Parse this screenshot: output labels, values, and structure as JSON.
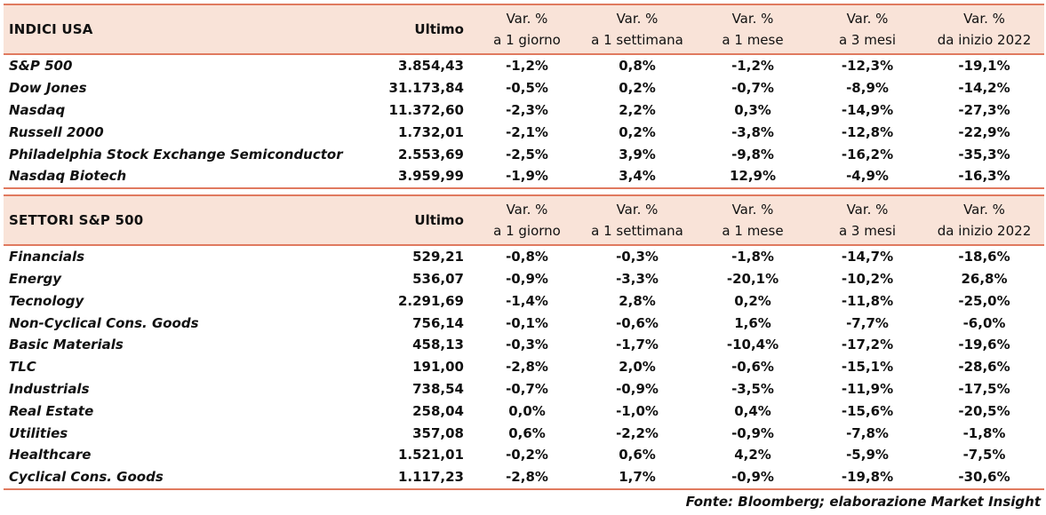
{
  "sections": [
    {
      "title": "INDICI USA",
      "last_label": "Ultimo",
      "columns": [
        {
          "line1": "Var. %",
          "line2": "a 1 giorno"
        },
        {
          "line1": "Var. %",
          "line2": "a 1 settimana"
        },
        {
          "line1": "Var. %",
          "line2": "a 1 mese"
        },
        {
          "line1": "Var. %",
          "line2": "a 3 mesi"
        },
        {
          "line1": "Var. %",
          "line2": "da inizio 2022"
        }
      ],
      "rows": [
        {
          "name": "S&P 500",
          "last": "3.854,43",
          "d1": "-1,2%",
          "w1": "0,8%",
          "m1": "-1,2%",
          "m3": "-12,3%",
          "ytd": "-19,1%"
        },
        {
          "name": "Dow Jones",
          "last": "31.173,84",
          "d1": "-0,5%",
          "w1": "0,2%",
          "m1": "-0,7%",
          "m3": "-8,9%",
          "ytd": "-14,2%"
        },
        {
          "name": "Nasdaq",
          "last": "11.372,60",
          "d1": "-2,3%",
          "w1": "2,2%",
          "m1": "0,3%",
          "m3": "-14,9%",
          "ytd": "-27,3%"
        },
        {
          "name": "Russell 2000",
          "last": "1.732,01",
          "d1": "-2,1%",
          "w1": "0,2%",
          "m1": "-3,8%",
          "m3": "-12,8%",
          "ytd": "-22,9%"
        },
        {
          "name": "Philadelphia Stock Exchange Semiconductor",
          "last": "2.553,69",
          "d1": "-2,5%",
          "w1": "3,9%",
          "m1": "-9,8%",
          "m3": "-16,2%",
          "ytd": "-35,3%"
        },
        {
          "name": "Nasdaq Biotech",
          "last": "3.959,99",
          "d1": "-1,9%",
          "w1": "3,4%",
          "m1": "12,9%",
          "m3": "-4,9%",
          "ytd": "-16,3%"
        }
      ]
    },
    {
      "title": "SETTORI S&P 500",
      "last_label": "Ultimo",
      "columns": [
        {
          "line1": "Var. %",
          "line2": "a 1 giorno"
        },
        {
          "line1": "Var. %",
          "line2": "a 1 settimana"
        },
        {
          "line1": "Var. %",
          "line2": "a 1 mese"
        },
        {
          "line1": "Var. %",
          "line2": "a 3 mesi"
        },
        {
          "line1": "Var. %",
          "line2": "da inizio 2022"
        }
      ],
      "rows": [
        {
          "name": "Financials",
          "last": "529,21",
          "d1": "-0,8%",
          "w1": "-0,3%",
          "m1": "-1,8%",
          "m3": "-14,7%",
          "ytd": "-18,6%"
        },
        {
          "name": "Energy",
          "last": "536,07",
          "d1": "-0,9%",
          "w1": "-3,3%",
          "m1": "-20,1%",
          "m3": "-10,2%",
          "ytd": "26,8%"
        },
        {
          "name": "Tecnology",
          "last": "2.291,69",
          "d1": "-1,4%",
          "w1": "2,8%",
          "m1": "0,2%",
          "m3": "-11,8%",
          "ytd": "-25,0%"
        },
        {
          "name": "Non-Cyclical Cons. Goods",
          "last": "756,14",
          "d1": "-0,1%",
          "w1": "-0,6%",
          "m1": "1,6%",
          "m3": "-7,7%",
          "ytd": "-6,0%"
        },
        {
          "name": "Basic Materials",
          "last": "458,13",
          "d1": "-0,3%",
          "w1": "-1,7%",
          "m1": "-10,4%",
          "m3": "-17,2%",
          "ytd": "-19,6%"
        },
        {
          "name": "TLC",
          "last": "191,00",
          "d1": "-2,8%",
          "w1": "2,0%",
          "m1": "-0,6%",
          "m3": "-15,1%",
          "ytd": "-28,6%"
        },
        {
          "name": "Industrials",
          "last": "738,54",
          "d1": "-0,7%",
          "w1": "-0,9%",
          "m1": "-3,5%",
          "m3": "-11,9%",
          "ytd": "-17,5%"
        },
        {
          "name": "Real Estate",
          "last": "258,04",
          "d1": "0,0%",
          "w1": "-1,0%",
          "m1": "0,4%",
          "m3": "-15,6%",
          "ytd": "-20,5%"
        },
        {
          "name": "Utilities",
          "last": "357,08",
          "d1": "0,6%",
          "w1": "-2,2%",
          "m1": "-0,9%",
          "m3": "-7,8%",
          "ytd": "-1,8%"
        },
        {
          "name": "Healthcare",
          "last": "1.521,01",
          "d1": "-0,2%",
          "w1": "0,6%",
          "m1": "4,2%",
          "m3": "-5,9%",
          "ytd": "-7,5%"
        },
        {
          "name": "Cyclical Cons. Goods",
          "last": "1.117,23",
          "d1": "-2,8%",
          "w1": "1,7%",
          "m1": "-0,9%",
          "m3": "-19,8%",
          "ytd": "-30,6%"
        }
      ]
    }
  ],
  "source": "Fonte: Bloomberg; elaborazione Market Insight",
  "colors": {
    "header_bg": "#f9e3d8",
    "rule": "#e07a5f"
  }
}
